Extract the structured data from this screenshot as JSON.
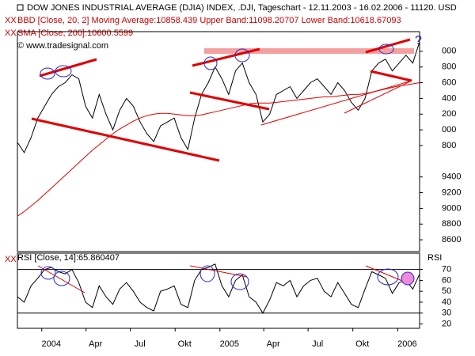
{
  "chart_data": [
    {
      "type": "line",
      "title": "DOW JONES INDUSTRIAL AVERAGE (DJIA) INDEX, .DJI, Tageschart - 12.11.2003 - 16.02.2006 - 11120. USD",
      "annotations": [
        "BBD [Close, 20, 2] Moving Average:10858.439 Upper Band:11098.20707 Lower Band:10618.67093",
        "SMA [Close, 200]:10600.5599",
        "© www.tradesignal.com",
        "?"
      ],
      "series": [
        {
          "color": "#000000",
          "values": [
            9840,
            9710,
            9900,
            10150,
            10300,
            10450,
            10550,
            10600,
            10700,
            10650,
            10300,
            10150,
            10450,
            10200,
            10000,
            10250,
            10400,
            10300,
            10100,
            9950,
            9850,
            10050,
            10100,
            10150,
            9900,
            9750,
            10150,
            10450,
            10600,
            10800,
            10650,
            10450,
            10750,
            10850,
            10600,
            10450,
            10100,
            10200,
            10450,
            10500,
            10550,
            10400,
            10500,
            10600,
            10650,
            10550,
            10450,
            10600,
            10500,
            10350,
            10250,
            10400,
            10750,
            10850,
            10900,
            10750,
            10850,
            10950,
            10850,
            11120
          ]
        },
        {
          "color": "#e00000",
          "values": [
            8900,
            8960,
            9030,
            9100,
            9180,
            9260,
            9340,
            9420,
            9500,
            9580,
            9660,
            9740,
            9810,
            9880,
            9950,
            10010,
            10060,
            10110,
            10150,
            10180,
            10200,
            10210,
            10210,
            10200,
            10190,
            10180,
            10180,
            10190,
            10210,
            10230,
            10250,
            10270,
            10290,
            10310,
            10330,
            10340,
            10340,
            10340,
            10350,
            10360,
            10370,
            10380,
            10390,
            10400,
            10410,
            10420,
            10420,
            10430,
            10440,
            10450,
            10450,
            10460,
            10480,
            10500,
            10520,
            10540,
            10560,
            10570,
            10585,
            10600.5599
          ]
        }
      ],
      "xlim": [
        0,
        59
      ],
      "ylim": [
        8450,
        11250
      ],
      "yticks": [
        {
          "value": 11000,
          "label": "000"
        },
        {
          "value": 10800,
          "label": "800"
        },
        {
          "value": 10600,
          "label": "600"
        },
        {
          "value": 10400,
          "label": "400"
        },
        {
          "value": 10200,
          "label": "200"
        },
        {
          "value": 10000,
          "label": "000"
        },
        {
          "value": 9800,
          "label": "800"
        },
        9400,
        9200,
        9000,
        8800,
        8600
      ]
    },
    {
      "type": "line",
      "title": "RSI [Close, 14]:65.860407",
      "ylabel": "RSI",
      "series": [
        {
          "color": "#000000",
          "values": [
            45,
            40,
            55,
            62,
            70,
            72,
            68,
            66,
            70,
            58,
            40,
            35,
            55,
            45,
            38,
            52,
            58,
            50,
            40,
            35,
            32,
            50,
            52,
            55,
            38,
            35,
            60,
            70,
            72,
            75,
            55,
            45,
            60,
            65,
            45,
            40,
            30,
            42,
            58,
            55,
            60,
            45,
            55,
            60,
            62,
            50,
            45,
            58,
            48,
            38,
            35,
            52,
            68,
            65,
            62,
            48,
            58,
            60,
            52,
            65.860407
          ]
        }
      ],
      "reference_lines": [
        70,
        30
      ],
      "xlim": [
        0,
        59
      ],
      "xticks": [
        {
          "value": 3.57,
          "label": "2004"
        },
        {
          "value": 10.07,
          "label": "Apr"
        },
        {
          "value": 16.57,
          "label": "Jul"
        },
        {
          "value": 23.14,
          "label": "Okt"
        },
        {
          "value": 29.71,
          "label": "2005"
        },
        {
          "value": 36.14,
          "label": "Apr"
        },
        {
          "value": 42.64,
          "label": "Jul"
        },
        {
          "value": 49.21,
          "label": "Okt"
        },
        {
          "value": 55.79,
          "label": "2006"
        }
      ],
      "ylim": [
        16,
        85
      ],
      "yticks": [
        70,
        60,
        50,
        40,
        30,
        20
      ]
    }
  ]
}
